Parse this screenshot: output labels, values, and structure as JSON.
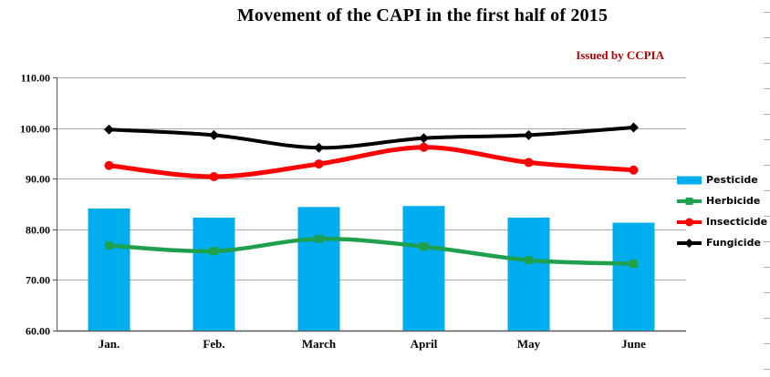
{
  "title": "Movement of the CAPI in the first half of 2015",
  "issued_by": "Issued by CCPIA",
  "colors": {
    "title_text": "#000000",
    "issued_text": "#c00000",
    "gridline": "#a6a6a6",
    "axis_line": "#595959",
    "pesticide_bar": "#00AEEF",
    "herbicide_line": "#1FA04D",
    "insecticide_line": "#FF0000",
    "fungicide_line": "#000000"
  },
  "chart_data": {
    "type": "combo-bar-line",
    "title": "Movement of the CAPI in the first half of 2015",
    "annotation": "Issued by CCPIA",
    "categories": [
      "Jan.",
      "Feb.",
      "March",
      "April",
      "May",
      "June"
    ],
    "y_axis": {
      "min": 60,
      "max": 110,
      "step": 10,
      "tick_labels": [
        "60.00",
        "70.00",
        "80.00",
        "90.00",
        "100.00",
        "110.00"
      ]
    },
    "grid": true,
    "legend_position": "right",
    "series": [
      {
        "name": "Pesticide",
        "type": "bar",
        "marker": "none",
        "color": "#00AEEF",
        "values": [
          84.1,
          82.3,
          84.4,
          84.6,
          82.3,
          81.3
        ]
      },
      {
        "name": "Herbicide",
        "type": "line",
        "marker": "square",
        "color": "#1FA04D",
        "values": [
          76.8,
          75.7,
          78.1,
          76.6,
          73.9,
          73.2
        ]
      },
      {
        "name": "Insecticide",
        "type": "line",
        "marker": "circle",
        "color": "#FF0000",
        "values": [
          92.6,
          90.4,
          92.9,
          96.2,
          93.2,
          91.7
        ]
      },
      {
        "name": "Fungicide",
        "type": "line",
        "marker": "diamond",
        "color": "#000000",
        "values": [
          99.7,
          98.6,
          96.1,
          98.0,
          98.6,
          100.1
        ]
      }
    ]
  }
}
